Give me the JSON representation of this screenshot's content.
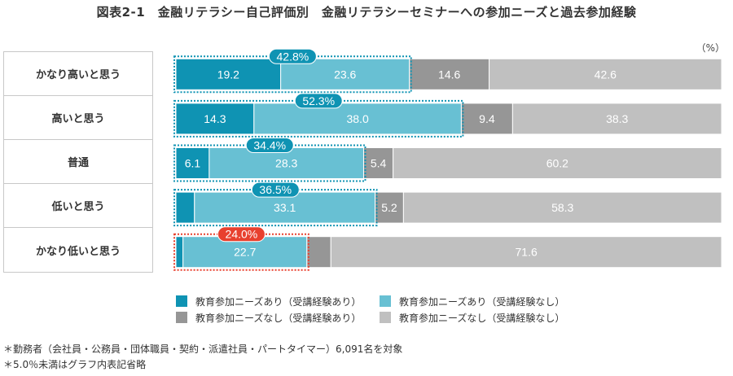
{
  "title": "図表2-1　金融リテラシー自己評価別　金融リテラシーセミナーへの参加ニーズと過去参加経験",
  "unit_label": "（%）",
  "footnotes": [
    "＊勤務者（会社員・公務員・団体職員・契約・派遣社員・パートタイマー）6,091名を対象",
    "＊5.0％未満はグラフ内表記省略"
  ],
  "colors": {
    "need_with_exp": "#0f93b3",
    "need_without_exp": "#68c0d3",
    "noneed_with_exp": "#969696",
    "noneed_without_exp": "#c0c0c0",
    "highlight_blue": "#0f93b3",
    "highlight_red": "#e8402e"
  },
  "chart_data": {
    "type": "bar",
    "orientation": "horizontal-stacked-100",
    "title": "図表2-1　金融リテラシー自己評価別　金融リテラシーセミナーへの参加ニーズと過去参加経験",
    "unit": "%",
    "xlim": [
      0,
      100
    ],
    "categories": [
      "かなり高いと思う",
      "高いと思う",
      "普通",
      "低いと思う",
      "かなり低いと思う"
    ],
    "series": [
      {
        "name": "教育参加ニーズあり（受講経験あり）",
        "color_key": "need_with_exp",
        "values": [
          19.2,
          14.3,
          6.1,
          3.4,
          1.3
        ],
        "labels": [
          "19.2",
          "14.3",
          "6.1",
          "",
          ""
        ]
      },
      {
        "name": "教育参加ニーズあり（受講経験なし）",
        "color_key": "need_without_exp",
        "values": [
          23.6,
          38.0,
          28.3,
          33.1,
          22.7
        ],
        "labels": [
          "23.6",
          "38.0",
          "28.3",
          "33.1",
          "22.7"
        ]
      },
      {
        "name": "教育参加ニーズなし（受講経験あり）",
        "color_key": "noneed_with_exp",
        "values": [
          14.6,
          9.4,
          5.4,
          5.2,
          4.4
        ],
        "labels": [
          "14.6",
          "9.4",
          "5.4",
          "5.2",
          ""
        ]
      },
      {
        "name": "教育参加ニーズなし（受講経験なし）",
        "color_key": "noneed_without_exp",
        "values": [
          42.6,
          38.3,
          60.2,
          58.3,
          71.6
        ],
        "labels": [
          "42.6",
          "38.3",
          "60.2",
          "58.3",
          "71.6"
        ]
      }
    ],
    "annotations": [
      {
        "category": "かなり高いと思う",
        "text": "42.8%",
        "color_key": "highlight_blue",
        "value": 42.8
      },
      {
        "category": "高いと思う",
        "text": "52.3%",
        "color_key": "highlight_blue",
        "value": 52.3
      },
      {
        "category": "普通",
        "text": "34.4%",
        "color_key": "highlight_blue",
        "value": 34.4
      },
      {
        "category": "低いと思う",
        "text": "36.5%",
        "color_key": "highlight_blue",
        "value": 36.5
      },
      {
        "category": "かなり低いと思う",
        "text": "24.0%",
        "color_key": "highlight_red",
        "value": 24.0
      }
    ],
    "legend": {
      "placement": "bottom",
      "columns": 2
    },
    "grid": false
  }
}
